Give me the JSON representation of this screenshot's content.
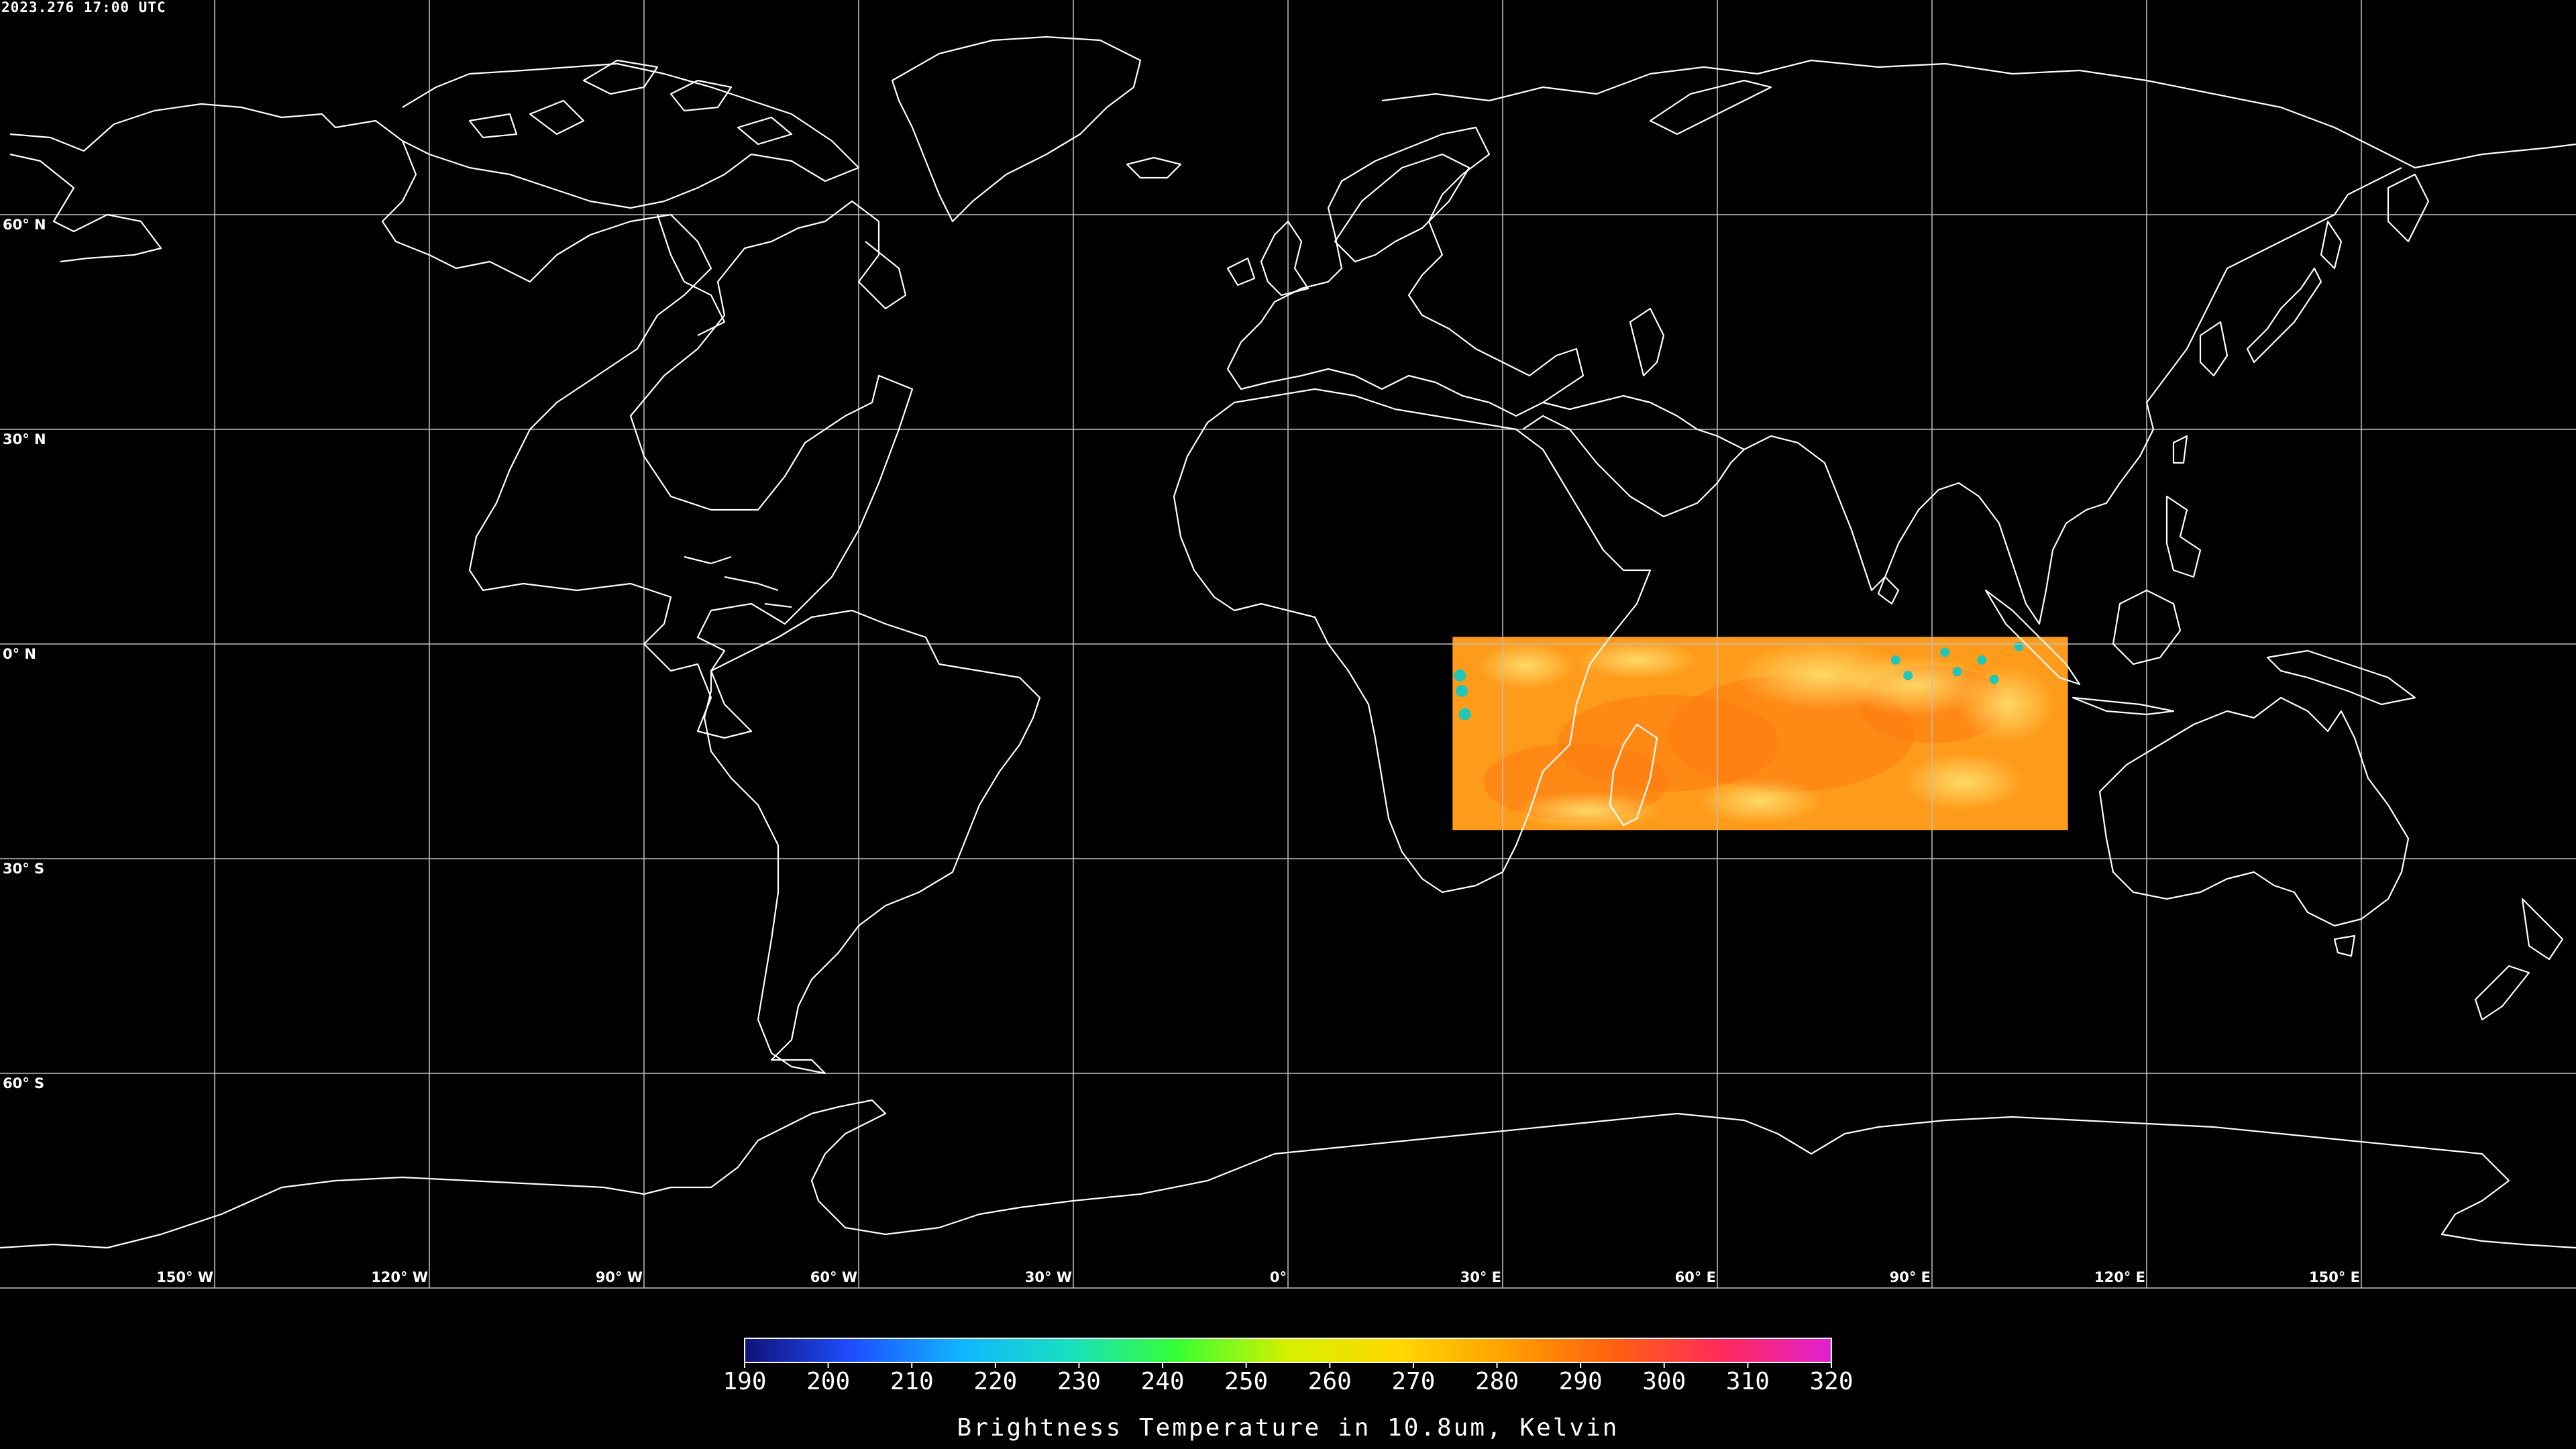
{
  "map": {
    "timestamp": "2023.276 17:00 UTC",
    "projection": "equirectangular",
    "lon_range": [
      -180,
      180
    ],
    "lat_range": [
      -90,
      90
    ],
    "lat_labels": [
      {
        "lat": 60,
        "label": "60° N"
      },
      {
        "lat": 30,
        "label": "30° N"
      },
      {
        "lat": 0,
        "label": "0° N"
      },
      {
        "lat": -30,
        "label": "30° S"
      },
      {
        "lat": -60,
        "label": "60° S"
      }
    ],
    "lon_labels": [
      {
        "lon": -150,
        "label": "150° W"
      },
      {
        "lon": -120,
        "label": "120° W"
      },
      {
        "lon": -90,
        "label": "90° W"
      },
      {
        "lon": -60,
        "label": "60° W"
      },
      {
        "lon": -30,
        "label": "30° W"
      },
      {
        "lon": 0,
        "label": "0°"
      },
      {
        "lon": 30,
        "label": "30° E"
      },
      {
        "lon": 60,
        "label": "60° E"
      },
      {
        "lon": 90,
        "label": "90° E"
      },
      {
        "lon": 120,
        "label": "120° E"
      },
      {
        "lon": 150,
        "label": "150° E"
      }
    ],
    "data_box": {
      "lon_min": 23,
      "lon_max": 109,
      "lat_min": -26,
      "lat_max": 1
    },
    "colors": {
      "background": "#000000",
      "coastline": "#ffffff",
      "gridline": "#bfbfbf",
      "data_field": "#ff9b1a",
      "data_field_warm": "#ff7a10",
      "cloud_cold": "#22c6b8"
    }
  },
  "colorbar": {
    "min": 190,
    "max": 320,
    "ticks": [
      "190",
      "200",
      "210",
      "220",
      "230",
      "240",
      "250",
      "260",
      "270",
      "280",
      "290",
      "300",
      "310",
      "320"
    ],
    "stops": [
      "#11117a",
      "#1f4fff",
      "#10b6ff",
      "#18e0c0",
      "#37ff30",
      "#d6f000",
      "#ffd900",
      "#ffa000",
      "#ff6010",
      "#ff2a5a",
      "#e020d0"
    ],
    "caption": "Brightness Temperature in 10.8um, Kelvin"
  }
}
